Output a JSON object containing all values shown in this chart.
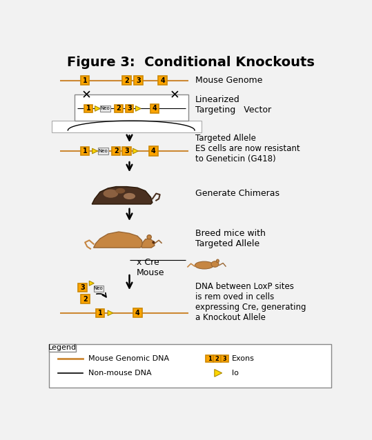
{
  "title": "Figure 3:  Conditional Knockouts",
  "title_fontsize": 14,
  "bg_color": "#f2f2f2",
  "orange_color": "#FFA500",
  "orange_border": "#CC8800",
  "loxp_color": "#FFD700",
  "neo_bg": "#e8e8e8",
  "line_color": "#CC8833",
  "black": "#000000",
  "white": "#ffffff",
  "labels": {
    "mouse_genome": "Mouse Genome",
    "linearized": "Linearized\nTargeting   Vector",
    "targeted": "Targeted Allele\nES cells are now resistant\nto Geneticin (G418)",
    "chimeras": "Generate Chimeras",
    "breed": "Breed mice with\nTargeted Allele",
    "cre": "x Cre\nMouse",
    "dna_removed": "DNA between LoxP sites\nis rem oved in cells\nexpressing Cre, generating\na Knockout Allele"
  },
  "legend_title": "Legend",
  "legend_line1": "Mouse Genomic DNA",
  "legend_line2": "Non-mouse DNA",
  "legend_exons": "Exons",
  "legend_lo": "lo"
}
